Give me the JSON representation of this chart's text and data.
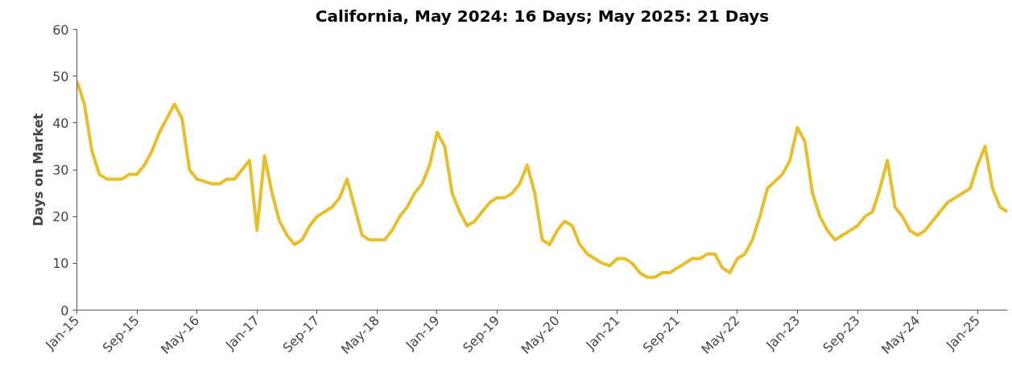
{
  "chart_data": {
    "type": "line",
    "title": "California, May 2024: 16 Days; May 2025: 21 Days",
    "ylabel": "Days on Market",
    "categories": [
      "Jan-15",
      null,
      null,
      null,
      null,
      null,
      null,
      null,
      "Sep-15",
      null,
      null,
      null,
      null,
      null,
      null,
      null,
      "May-16",
      null,
      null,
      null,
      null,
      null,
      null,
      null,
      "Jan-17",
      null,
      null,
      null,
      null,
      null,
      null,
      null,
      "Sep-17",
      null,
      null,
      null,
      null,
      null,
      null,
      null,
      "May-18",
      null,
      null,
      null,
      null,
      null,
      null,
      null,
      "Jan-19",
      null,
      null,
      null,
      null,
      null,
      null,
      null,
      "Sep-19",
      null,
      null,
      null,
      null,
      null,
      null,
      null,
      "May-20",
      null,
      null,
      null,
      null,
      null,
      null,
      null,
      "Jan-21",
      null,
      null,
      null,
      null,
      null,
      null,
      null,
      "Sep-21",
      null,
      null,
      null,
      null,
      null,
      null,
      null,
      "May-22",
      null,
      null,
      null,
      null,
      null,
      null,
      null,
      "Jan-23",
      null,
      null,
      null,
      null,
      null,
      null,
      null,
      "Sep-23",
      null,
      null,
      null,
      null,
      null,
      null,
      null,
      "May-24",
      null,
      null,
      null,
      null,
      null,
      null,
      null,
      "Jan-25",
      null,
      null,
      null,
      null
    ],
    "series": [
      {
        "color": "#e8bf2a",
        "values": [
          49,
          44,
          34,
          29,
          28,
          28,
          28,
          29,
          29,
          31,
          34,
          38,
          41,
          44,
          41,
          30,
          28,
          27.5,
          27,
          27,
          28,
          28,
          30,
          32,
          17,
          33,
          25,
          19,
          16,
          14,
          15,
          18,
          20,
          21,
          22,
          24,
          28,
          22,
          16,
          15,
          15,
          15,
          17,
          20,
          22,
          25,
          27,
          31,
          38,
          35,
          25,
          21,
          18,
          19,
          21,
          23,
          24,
          24,
          25,
          27,
          31,
          25,
          15,
          14,
          17,
          19,
          18,
          14,
          12,
          11,
          10,
          9.5,
          11,
          11,
          10,
          8,
          7,
          7,
          8,
          8,
          9,
          10,
          11,
          11,
          12,
          12,
          9,
          8,
          11,
          12,
          15,
          20,
          26,
          27.5,
          29,
          32,
          39,
          36,
          25,
          20,
          17,
          15,
          16,
          17,
          18,
          20,
          21,
          26,
          32,
          22,
          20,
          17,
          16,
          17,
          19,
          21,
          23,
          24,
          25,
          26,
          31,
          35,
          26,
          22,
          21
        ]
      }
    ],
    "ylim": [
      0,
      60
    ],
    "yticks": [
      0,
      10,
      20,
      30,
      40,
      50,
      60
    ],
    "grid": false,
    "marker": "none",
    "line_style": "solid"
  }
}
